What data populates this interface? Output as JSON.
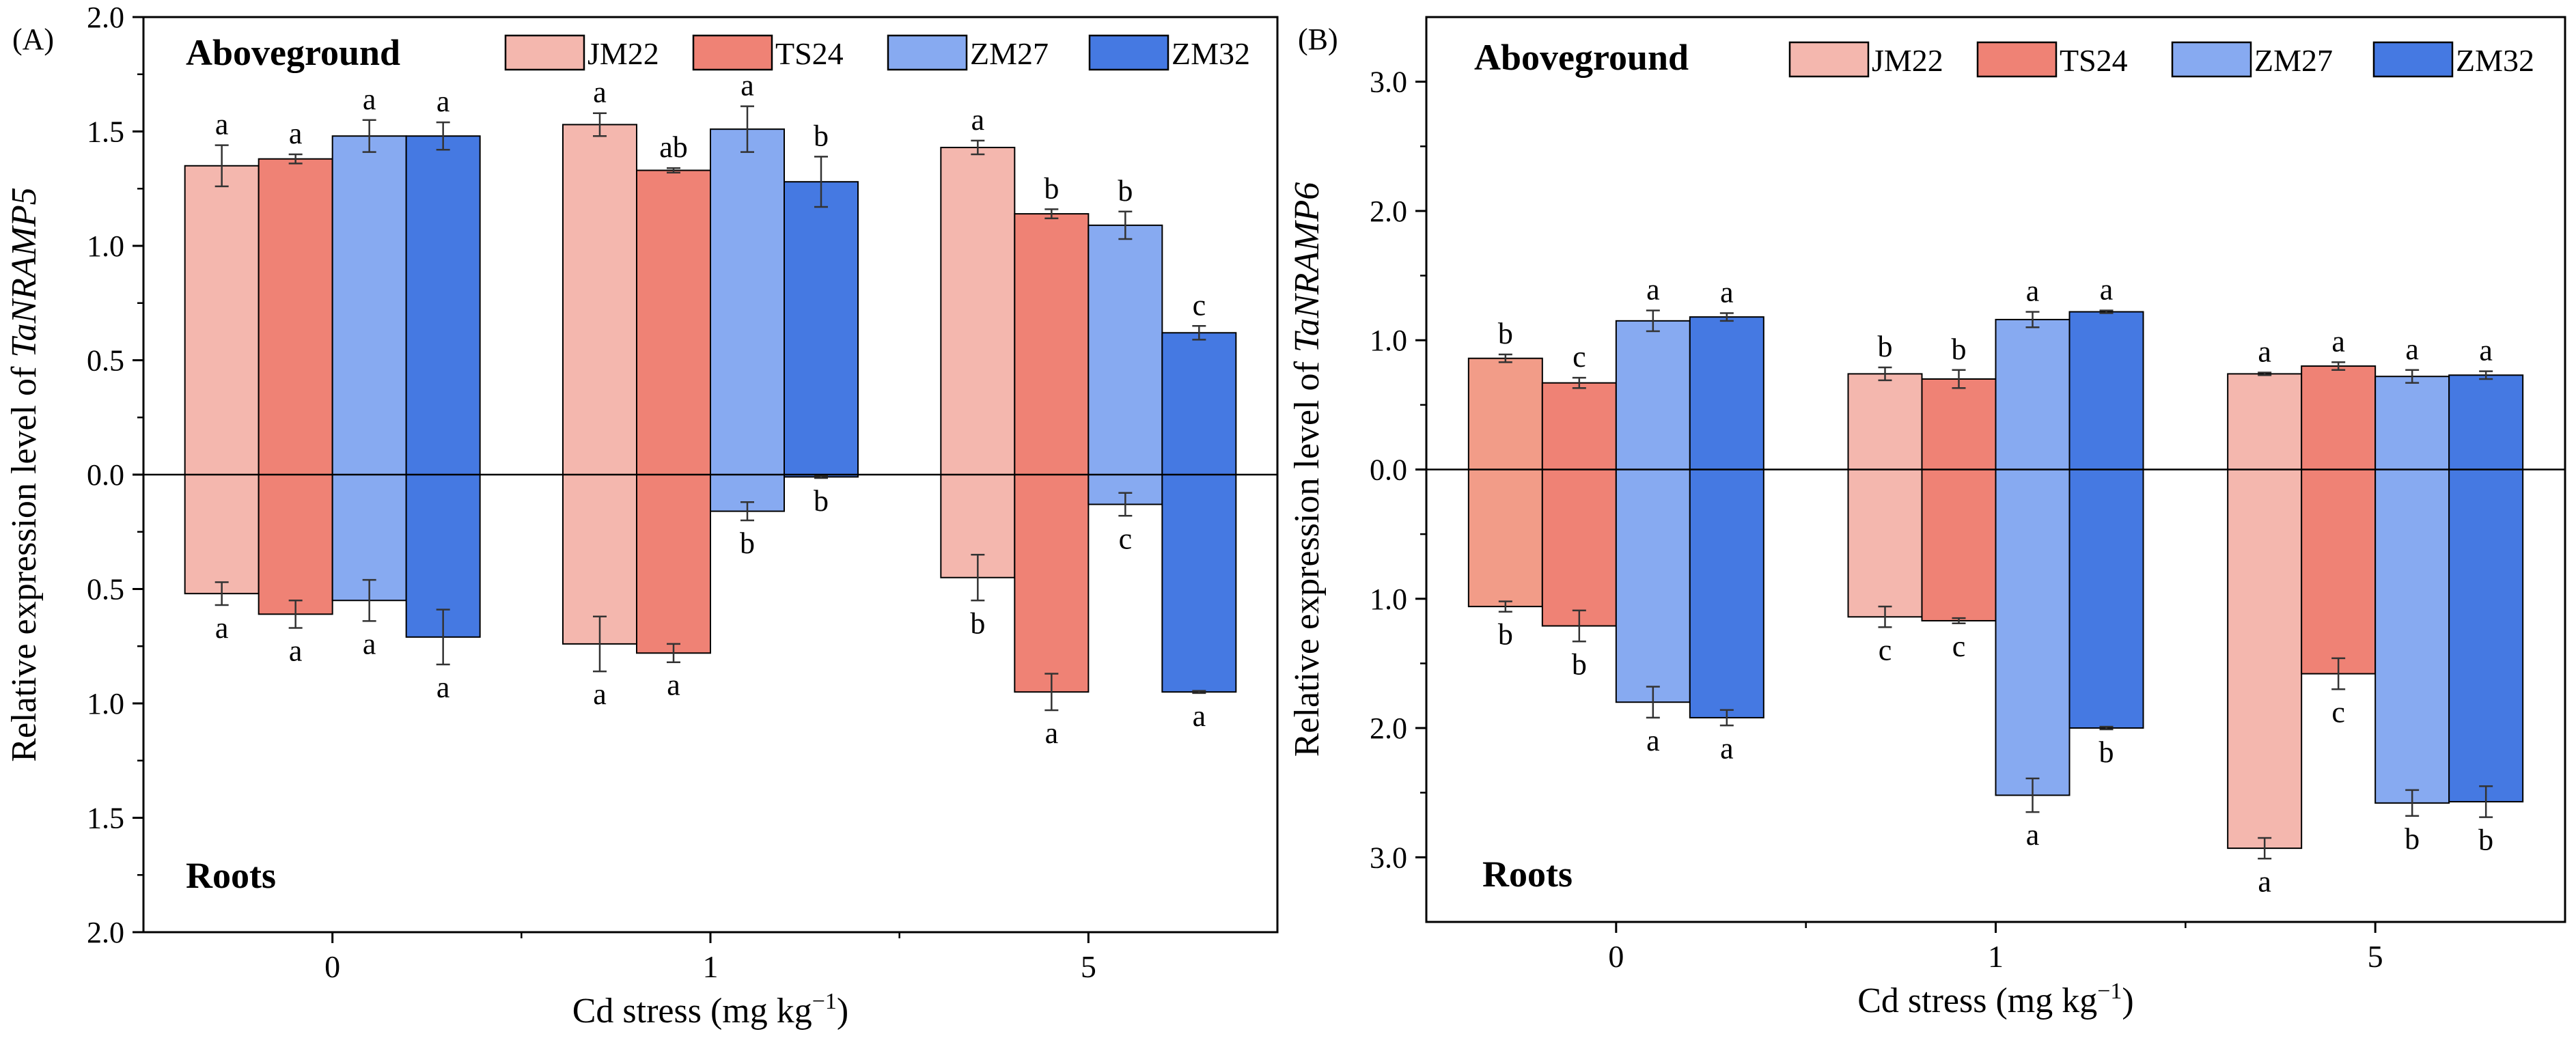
{
  "figure": {
    "colors": {
      "JM22": "#F4B7AE",
      "TS24": "#EF8275",
      "ZM27": "#87AAF1",
      "ZM32": "#4579E2",
      "JM22_panelB_cd0": "#F29C88"
    }
  },
  "chart_data": [
    {
      "panel_label": "(A)",
      "type": "bar",
      "ylabel_prefix": "Relative expression level of ",
      "ylabel_gene": "TaNRAMP5",
      "xlabel_prefix": "Cd stress (mg kg",
      "xlabel_sup": "−1",
      "xlabel_suffix": ")",
      "top_region_label": "Aboveground",
      "bottom_region_label": "Roots",
      "categories": [
        "0",
        "1",
        "5"
      ],
      "legend": [
        "JM22",
        "TS24",
        "ZM27",
        "ZM32"
      ],
      "ylim": [
        -2.0,
        2.0
      ],
      "yticks": [
        {
          "value": 2.0,
          "label": "2.0"
        },
        {
          "value": 1.5,
          "label": "1.5"
        },
        {
          "value": 1.0,
          "label": "1.0"
        },
        {
          "value": 0.5,
          "label": "0.5"
        },
        {
          "value": 0.0,
          "label": "0.0"
        },
        {
          "value": -0.5,
          "label": "0.5"
        },
        {
          "value": -1.0,
          "label": "1.0"
        },
        {
          "value": -1.5,
          "label": "1.5"
        },
        {
          "value": -2.0,
          "label": "2.0"
        }
      ],
      "series": [
        {
          "name": "JM22",
          "aboveground": [
            1.35,
            1.53,
            1.43
          ],
          "aboveground_err": [
            0.09,
            0.05,
            0.03
          ],
          "aboveground_letters": [
            "a",
            "a",
            "a"
          ],
          "roots": [
            0.52,
            0.74,
            0.45
          ],
          "roots_err": [
            0.05,
            0.12,
            0.1
          ],
          "roots_letters": [
            "a",
            "a",
            "b"
          ]
        },
        {
          "name": "TS24",
          "aboveground": [
            1.38,
            1.33,
            1.14
          ],
          "aboveground_err": [
            0.02,
            0.01,
            0.02
          ],
          "aboveground_letters": [
            "a",
            "ab",
            "b"
          ],
          "roots": [
            0.61,
            0.78,
            0.95
          ],
          "roots_err": [
            0.06,
            0.04,
            0.08
          ],
          "roots_letters": [
            "a",
            "a",
            "a"
          ]
        },
        {
          "name": "ZM27",
          "aboveground": [
            1.48,
            1.51,
            1.09
          ],
          "aboveground_err": [
            0.07,
            0.1,
            0.06
          ],
          "aboveground_letters": [
            "a",
            "a",
            "b"
          ],
          "roots": [
            0.55,
            0.16,
            0.13
          ],
          "roots_err": [
            0.09,
            0.04,
            0.05
          ],
          "roots_letters": [
            "a",
            "b",
            "c"
          ]
        },
        {
          "name": "ZM32",
          "aboveground": [
            1.48,
            1.28,
            0.62
          ],
          "aboveground_err": [
            0.06,
            0.11,
            0.03
          ],
          "aboveground_letters": [
            "a",
            "b",
            "c"
          ],
          "roots": [
            0.71,
            0.01,
            0.95
          ],
          "roots_err": [
            0.12,
            0.005,
            0.005
          ],
          "roots_letters": [
            "a",
            "b",
            "a"
          ]
        }
      ]
    },
    {
      "panel_label": "(B)",
      "type": "bar",
      "ylabel_prefix": "Relative expression level of ",
      "ylabel_gene": "TaNRAMP6",
      "xlabel_prefix": "Cd stress (mg kg",
      "xlabel_sup": "−1",
      "xlabel_suffix": ")",
      "top_region_label": "Aboveground",
      "bottom_region_label": "Roots",
      "categories": [
        "0",
        "1",
        "5"
      ],
      "legend": [
        "JM22",
        "TS24",
        "ZM27",
        "ZM32"
      ],
      "ylim": [
        -3.5,
        3.5
      ],
      "yticks": [
        {
          "value": 3.0,
          "label": "3.0"
        },
        {
          "value": 2.0,
          "label": "2.0"
        },
        {
          "value": 1.0,
          "label": "1.0"
        },
        {
          "value": 0.0,
          "label": "0.0"
        },
        {
          "value": -1.0,
          "label": "1.0"
        },
        {
          "value": -2.0,
          "label": "2.0"
        },
        {
          "value": -3.0,
          "label": "3.0"
        }
      ],
      "series": [
        {
          "name": "JM22",
          "aboveground": [
            0.86,
            0.74,
            0.74
          ],
          "aboveground_err": [
            0.03,
            0.05,
            0.01
          ],
          "aboveground_letters": [
            "b",
            "b",
            "a"
          ],
          "roots": [
            1.06,
            1.14,
            2.93
          ],
          "roots_err": [
            0.04,
            0.08,
            0.08
          ],
          "roots_letters": [
            "b",
            "c",
            "a"
          ]
        },
        {
          "name": "TS24",
          "aboveground": [
            0.67,
            0.7,
            0.8
          ],
          "aboveground_err": [
            0.04,
            0.07,
            0.03
          ],
          "aboveground_letters": [
            "c",
            "b",
            "a"
          ],
          "roots": [
            1.21,
            1.17,
            1.58
          ],
          "roots_err": [
            0.12,
            0.02,
            0.12
          ],
          "roots_letters": [
            "b",
            "c",
            "c"
          ]
        },
        {
          "name": "ZM27",
          "aboveground": [
            1.15,
            1.16,
            0.72
          ],
          "aboveground_err": [
            0.08,
            0.06,
            0.05
          ],
          "aboveground_letters": [
            "a",
            "a",
            "a"
          ],
          "roots": [
            1.8,
            2.52,
            2.58
          ],
          "roots_err": [
            0.12,
            0.13,
            0.1
          ],
          "roots_letters": [
            "a",
            "a",
            "b"
          ]
        },
        {
          "name": "ZM32",
          "aboveground": [
            1.18,
            1.22,
            0.73
          ],
          "aboveground_err": [
            0.03,
            0.01,
            0.03
          ],
          "aboveground_letters": [
            "a",
            "a",
            "a"
          ],
          "roots": [
            1.92,
            2.0,
            2.57
          ],
          "roots_err": [
            0.06,
            0.01,
            0.12
          ],
          "roots_letters": [
            "a",
            "b",
            "b"
          ]
        }
      ]
    }
  ]
}
